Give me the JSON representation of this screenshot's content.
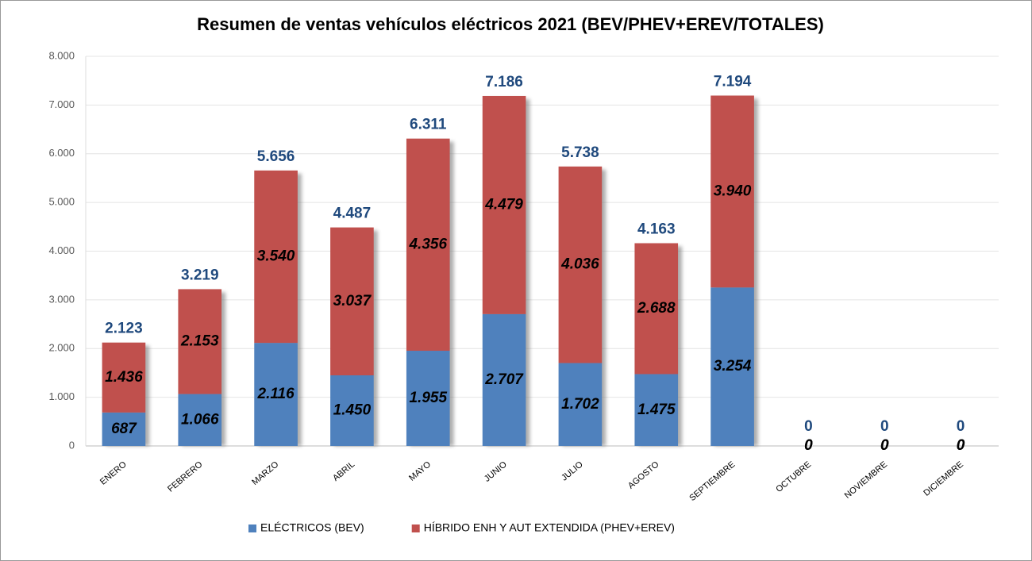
{
  "chart_data": {
    "type": "stacked-bar",
    "title": "Resumen de ventas vehículos eléctricos 2021 (BEV/PHEV+EREV/TOTALES)",
    "categories": [
      "ENERO",
      "FEBRERO",
      "MARZO",
      "ABRIL",
      "MAYO",
      "JUNIO",
      "JULIO",
      "AGOSTO",
      "SEPTIEMBRE",
      "OCTUBRE",
      "NOVIEMBRE",
      "DICIEMBRE"
    ],
    "series": [
      {
        "name": "ELÉCTRICOS (BEV)",
        "color": "#4f81bd",
        "values": [
          687,
          1066,
          2116,
          1450,
          1955,
          2707,
          1702,
          1475,
          3254,
          0,
          0,
          0
        ],
        "value_labels": [
          "687",
          "1.066",
          "2.116",
          "1.450",
          "1.955",
          "2.707",
          "1.702",
          "1.475",
          "3.254",
          "0",
          "0",
          "0"
        ]
      },
      {
        "name": "HÍBRIDO ENH Y AUT EXTENDIDA (PHEV+EREV)",
        "color": "#c0504d",
        "values": [
          1436,
          2153,
          3540,
          3037,
          4356,
          4479,
          4036,
          2688,
          3940,
          0,
          0,
          0
        ],
        "value_labels": [
          "1.436",
          "2.153",
          "3.540",
          "3.037",
          "4.356",
          "4.479",
          "4.036",
          "2.688",
          "3.940",
          "0",
          "0",
          "0"
        ]
      }
    ],
    "totals": {
      "color": "#1f497d",
      "values": [
        2123,
        3219,
        5656,
        4487,
        6311,
        7186,
        5738,
        4163,
        7194,
        0,
        0,
        0
      ],
      "value_labels": [
        "2.123",
        "3.219",
        "5.656",
        "4.487",
        "6.311",
        "7.186",
        "5.738",
        "4.163",
        "7.194",
        "0",
        "0",
        "0"
      ]
    },
    "ylim": [
      0,
      8000
    ],
    "yticks": [
      0,
      {
        "value": 1000,
        "label": "1.000"
      },
      {
        "value": 2000,
        "label": "2.000"
      },
      {
        "value": 3000,
        "label": "3.000"
      },
      {
        "value": 4000,
        "label": "4.000"
      },
      {
        "value": 5000,
        "label": "5.000"
      },
      {
        "value": 6000,
        "label": "6.000"
      },
      {
        "value": 7000,
        "label": "7.000"
      },
      {
        "value": 8000,
        "label": "8.000"
      }
    ],
    "grid": true,
    "legend": "bottom"
  }
}
